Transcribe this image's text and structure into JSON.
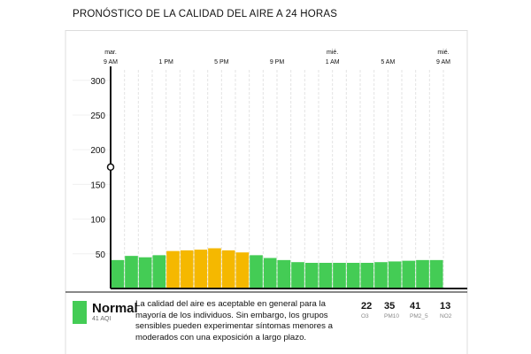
{
  "title": "PRONÓSTICO DE LA CALIDAD DEL AIRE A 24 HORAS",
  "chart_data": {
    "type": "bar",
    "y_axis": {
      "ticks": [
        50,
        100,
        150,
        200,
        250,
        300
      ],
      "ylim": [
        0,
        315
      ]
    },
    "time_labels": [
      {
        "day": "mar.",
        "time": "9 AM",
        "hour": 0
      },
      {
        "day": "",
        "time": "1 PM",
        "hour": 4
      },
      {
        "day": "",
        "time": "5 PM",
        "hour": 8
      },
      {
        "day": "",
        "time": "9 PM",
        "hour": 12
      },
      {
        "day": "mié.",
        "time": "1 AM",
        "hour": 16
      },
      {
        "day": "",
        "time": "5 AM",
        "hour": 20
      },
      {
        "day": "mié.",
        "time": "9 AM",
        "hour": 24
      }
    ],
    "values": [
      41,
      47,
      45,
      48,
      54,
      55,
      56,
      58,
      55,
      52,
      48,
      44,
      41,
      38,
      37,
      37,
      37,
      37,
      37,
      38,
      39,
      40,
      41,
      41
    ],
    "marker": {
      "hour": 0,
      "value": 175
    },
    "colors": {
      "good": "#44cc55",
      "moderate": "#f5b800",
      "bar_stroke": "#ffffff",
      "axis": "#111111",
      "grid": "#e3e3e3"
    }
  },
  "current": {
    "status": "Normal",
    "aqi": "41 AQI",
    "color": "#44cc55",
    "description": "La calidad del aire es aceptable en general para la mayoría de los individuos. Sin embargo, los grupos sensibles pueden experimentar síntomas menores a moderados con una exposición a largo plazo."
  },
  "pollutants": [
    {
      "value": "22",
      "label": "O3"
    },
    {
      "value": "35",
      "label": "PM10"
    },
    {
      "value": "41",
      "label": "PM2_5"
    },
    {
      "value": "13",
      "label": "NO2"
    }
  ]
}
